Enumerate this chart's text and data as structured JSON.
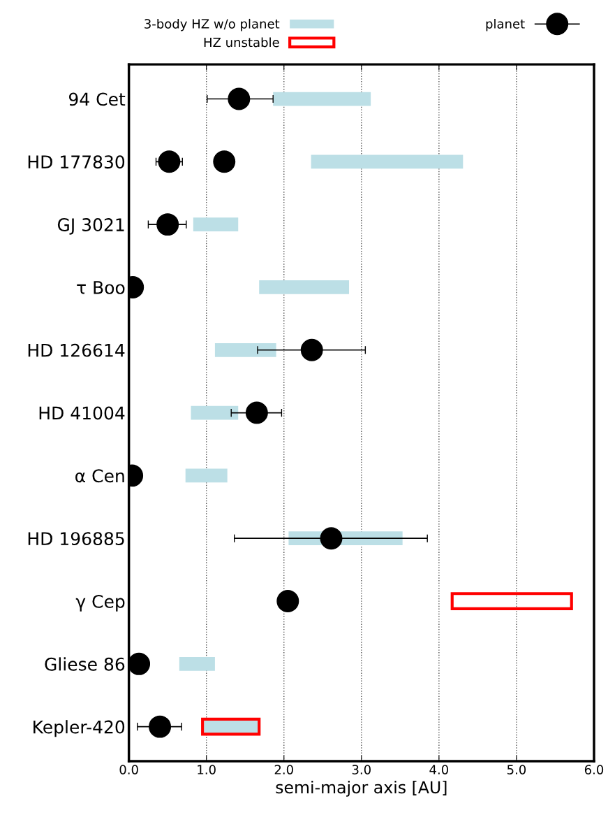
{
  "chart_data": {
    "type": "bar",
    "orientation": "horizontal",
    "xlabel": "semi-major axis [AU]",
    "categories": [
      "94 Cet",
      "HD 177830",
      "GJ 3021",
      "τ Boo",
      "HD 126614",
      "HD 41004",
      "α Cen",
      "HD 196885",
      "γ Cep",
      "Gliese 86",
      "Kepler-420"
    ],
    "series": [
      {
        "name": "3-body HZ w/o planet",
        "color": "#bcdfe6",
        "base": [
          1.86,
          2.35,
          0.83,
          1.68,
          1.11,
          0.8,
          0.73,
          2.06,
          null,
          0.65,
          0.97
        ],
        "values": [
          1.26,
          1.96,
          0.58,
          1.16,
          0.79,
          0.61,
          0.54,
          1.47,
          null,
          0.46,
          0.7
        ]
      },
      {
        "name": "HZ unstable",
        "color": "#ff0000",
        "line_style": "solid",
        "base": [
          null,
          null,
          null,
          null,
          null,
          null,
          null,
          null,
          4.17,
          null,
          0.95
        ],
        "values": [
          null,
          null,
          null,
          null,
          null,
          null,
          null,
          null,
          1.54,
          null,
          0.73
        ]
      },
      {
        "name": "planet",
        "type": "scatter",
        "color": "#000000",
        "values": [
          1.42,
          0.52,
          0.5,
          0.05,
          2.36,
          1.65,
          0.04,
          2.61,
          2.05,
          0.13,
          0.4
        ],
        "errors": [
          [
            1.01,
            1.86
          ],
          [
            0.35,
            0.69
          ],
          [
            0.25,
            0.74
          ],
          null,
          [
            1.66,
            3.05
          ],
          [
            1.32,
            1.97
          ],
          null,
          [
            1.36,
            3.85
          ],
          null,
          null,
          [
            0.11,
            0.68
          ]
        ]
      },
      {
        "type": "scatter",
        "color": "#000000",
        "values": [
          null,
          1.23,
          null,
          null,
          null,
          null,
          null,
          null,
          null,
          null,
          null
        ]
      }
    ],
    "xlim": [
      0,
      6
    ],
    "xticks": [
      {
        "value": 0,
        "label": "0.0"
      },
      {
        "value": 1,
        "label": "1.0"
      },
      {
        "value": 2,
        "label": "2.0"
      },
      {
        "value": 3,
        "label": "3.0"
      },
      {
        "value": 4,
        "label": "4.0"
      },
      {
        "value": 5,
        "label": "5.0"
      },
      {
        "value": 6,
        "label": "6.0"
      }
    ],
    "grid": "x",
    "line_style": "dotted",
    "marker": "circle",
    "legend": "top"
  }
}
